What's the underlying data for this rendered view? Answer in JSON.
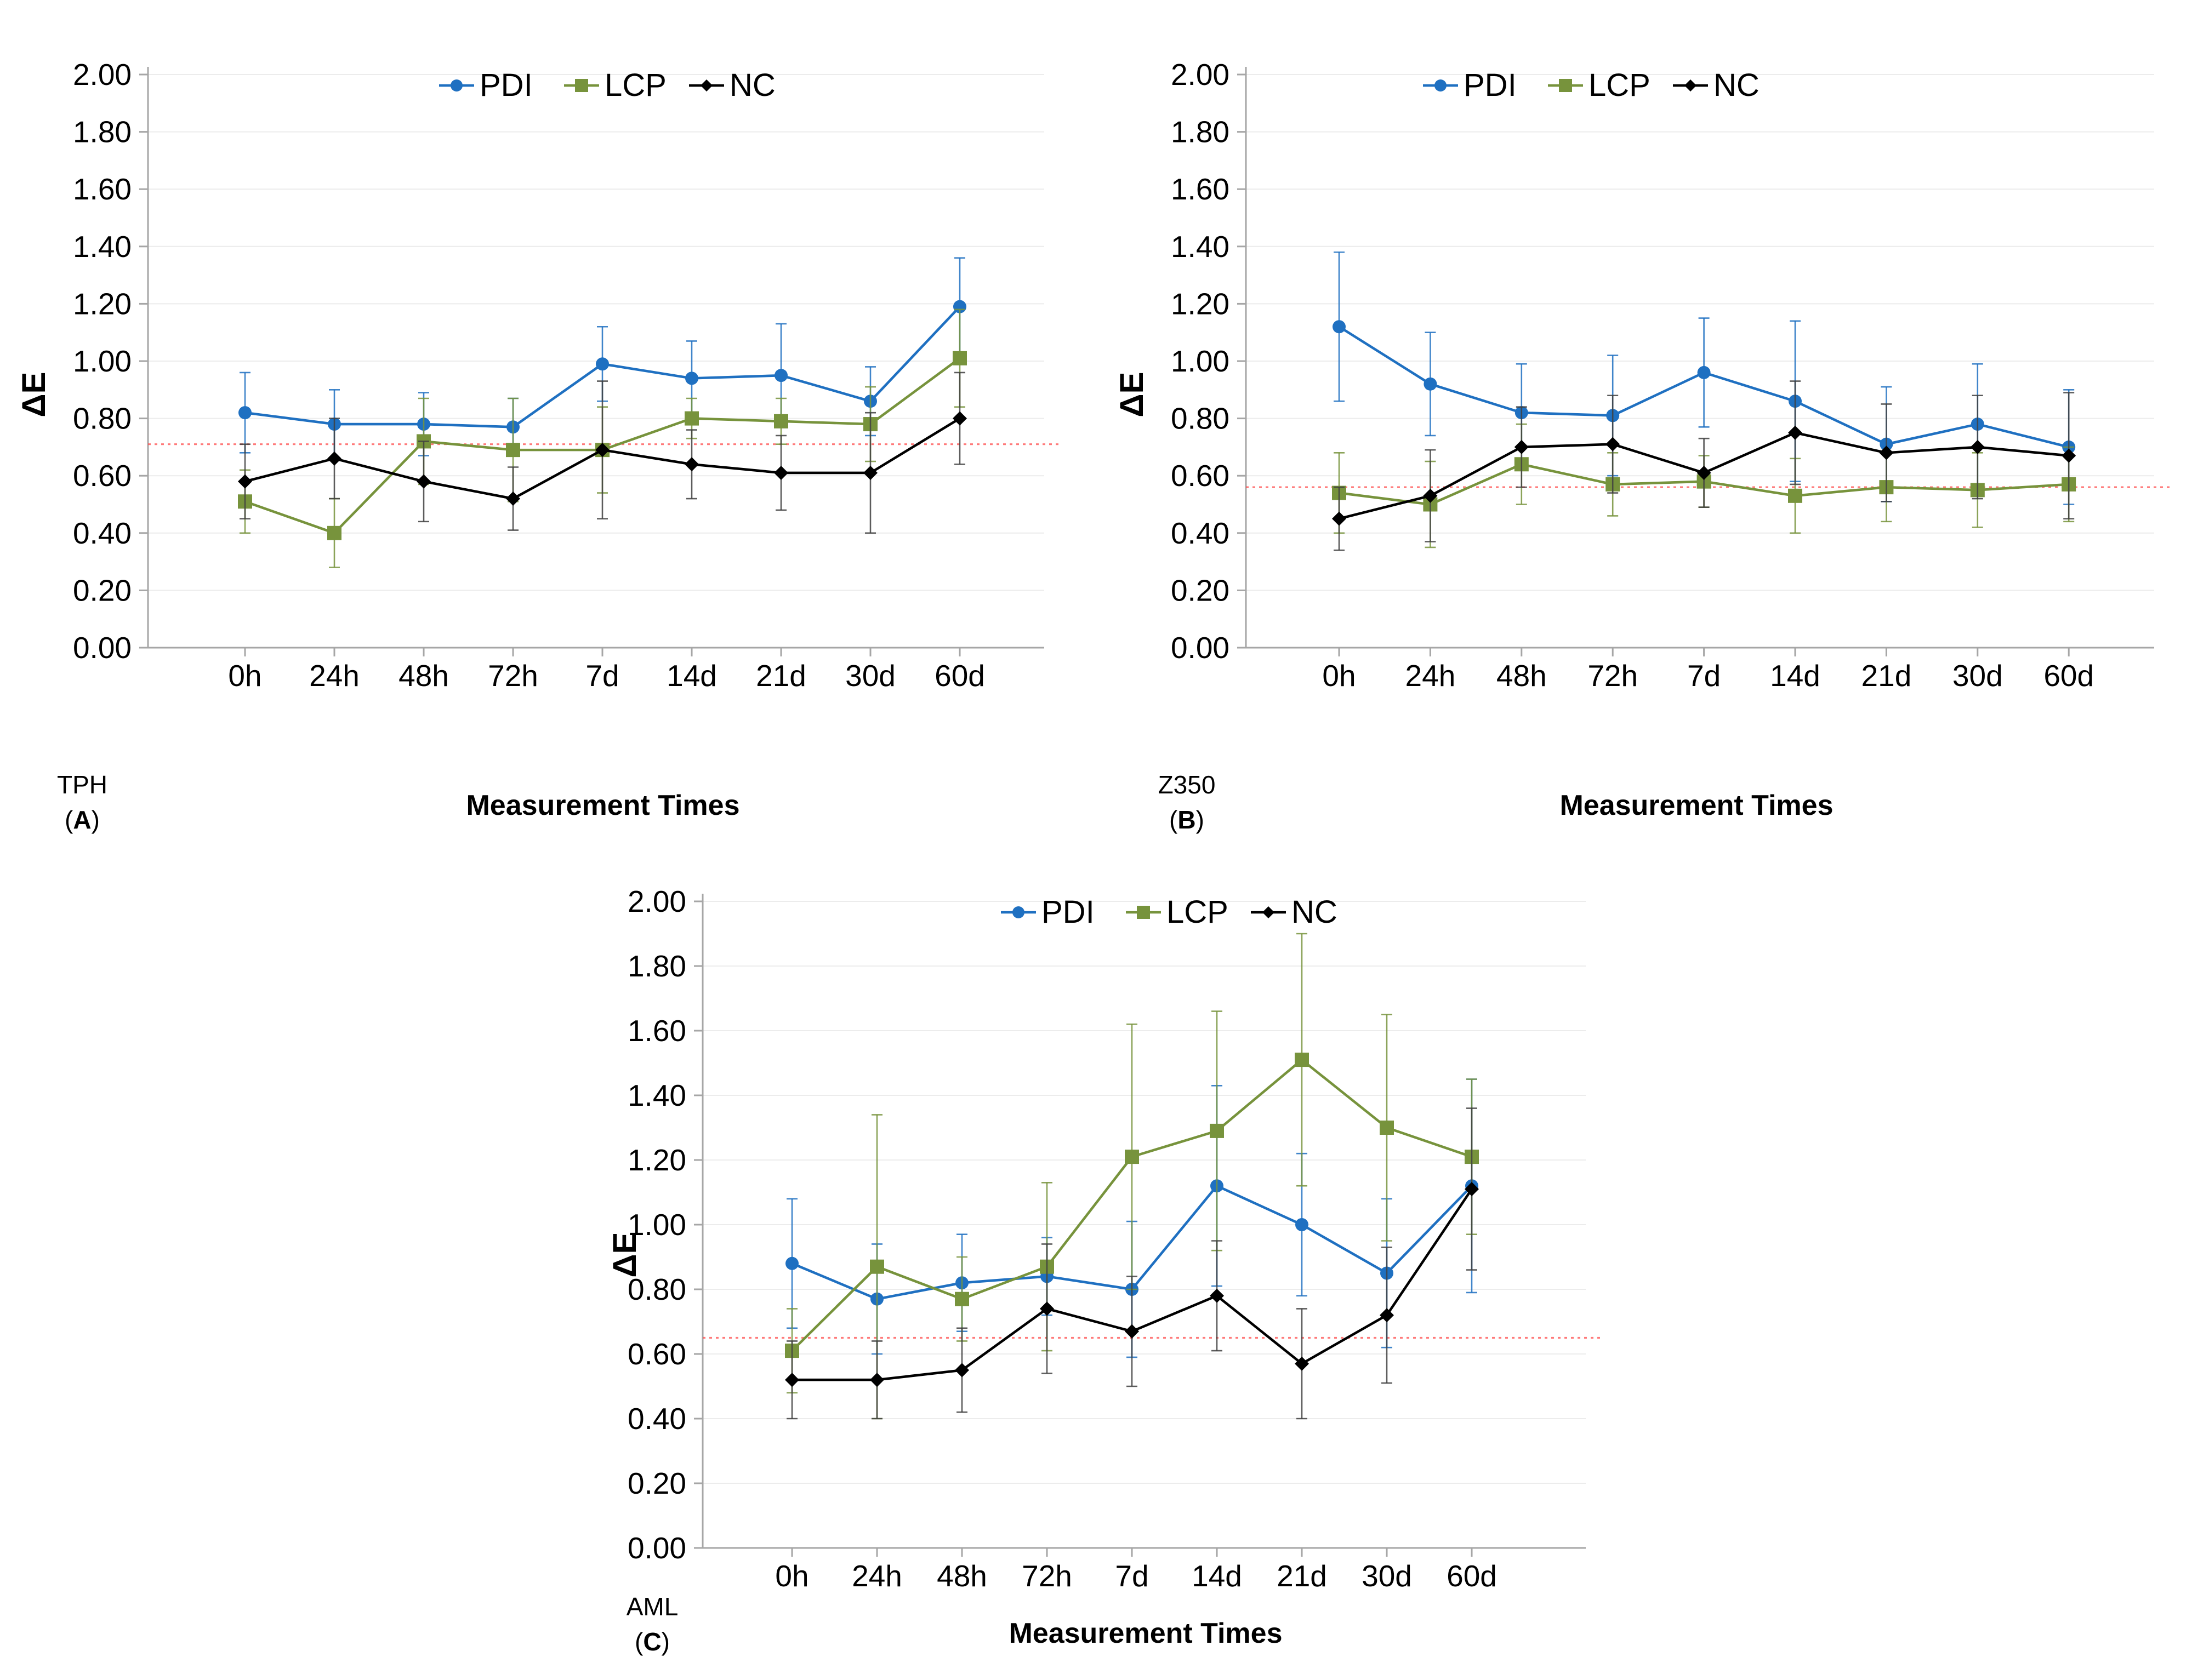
{
  "figure": {
    "background": "#FFFFFF",
    "axis_label_y": "ΔE",
    "axis_label_x": "Measurement Times",
    "categories": [
      "0h",
      "24h",
      "48h",
      "72h",
      "7d",
      "14d",
      "21d",
      "30d",
      "60d"
    ],
    "yticks": [
      "2.00",
      "1.80",
      "1.60",
      "1.40",
      "1.20",
      "1.00",
      "0.80",
      "0.60",
      "0.40",
      "0.20",
      "0.00"
    ],
    "legend": [
      {
        "label": "PDI",
        "marker": "circle",
        "color": "#1F70C1"
      },
      {
        "label": "LCP",
        "marker": "square",
        "color": "#77933C"
      },
      {
        "label": "NC",
        "marker": "diamond",
        "color": "#000000"
      }
    ],
    "colors": {
      "grid": "#ECECEC",
      "axis": "#A6A6A6",
      "reference_line": "#FF4D4D",
      "text": "#000000",
      "nc_errorbar": "#404040"
    }
  },
  "chart_data": [
    {
      "type": "line",
      "panel": "A",
      "material": "TPH",
      "panel_label_letter": "A",
      "title": "",
      "xlabel": "Measurement Times",
      "ylabel": "ΔE",
      "ylim": [
        0,
        2.0
      ],
      "ytick_step": 0.2,
      "grid": true,
      "legend_position": "top-center",
      "categories": [
        "0h",
        "24h",
        "48h",
        "72h",
        "7d",
        "14d",
        "21d",
        "30d",
        "60d"
      ],
      "reference_line": 0.71,
      "series": [
        {
          "name": "PDI",
          "values": [
            0.82,
            0.78,
            0.78,
            0.77,
            0.99,
            0.94,
            0.95,
            0.86,
            1.19
          ],
          "err": [
            0.14,
            0.12,
            0.11,
            0.1,
            0.13,
            0.13,
            0.18,
            0.12,
            0.17
          ]
        },
        {
          "name": "LCP",
          "values": [
            0.51,
            0.4,
            0.72,
            0.69,
            0.69,
            0.8,
            0.79,
            0.78,
            1.01
          ],
          "err": [
            0.11,
            0.12,
            0.15,
            0.18,
            0.15,
            0.07,
            0.08,
            0.13,
            0.17
          ]
        },
        {
          "name": "NC",
          "values": [
            0.58,
            0.66,
            0.58,
            0.52,
            0.69,
            0.64,
            0.61,
            0.61,
            0.8
          ],
          "err": [
            0.13,
            0.14,
            0.14,
            0.11,
            0.24,
            0.12,
            0.13,
            0.21,
            0.16
          ]
        }
      ]
    },
    {
      "type": "line",
      "panel": "B",
      "material": "Z350",
      "panel_label_letter": "B",
      "title": "",
      "xlabel": "Measurement Times",
      "ylabel": "ΔE",
      "ylim": [
        0,
        2.0
      ],
      "ytick_step": 0.2,
      "grid": true,
      "legend_position": "top-center",
      "categories": [
        "0h",
        "24h",
        "48h",
        "72h",
        "7d",
        "14d",
        "21d",
        "30d",
        "60d"
      ],
      "reference_line": 0.56,
      "series": [
        {
          "name": "PDI",
          "values": [
            1.12,
            0.92,
            0.82,
            0.81,
            0.96,
            0.86,
            0.71,
            0.78,
            0.7
          ],
          "err": [
            0.26,
            0.18,
            0.17,
            0.21,
            0.19,
            0.28,
            0.2,
            0.21,
            0.2
          ]
        },
        {
          "name": "LCP",
          "values": [
            0.54,
            0.5,
            0.64,
            0.57,
            0.58,
            0.53,
            0.56,
            0.55,
            0.57
          ],
          "err": [
            0.14,
            0.15,
            0.14,
            0.11,
            0.09,
            0.13,
            0.12,
            0.13,
            0.13
          ]
        },
        {
          "name": "NC",
          "values": [
            0.45,
            0.53,
            0.7,
            0.71,
            0.61,
            0.75,
            0.68,
            0.7,
            0.67
          ],
          "err": [
            0.11,
            0.16,
            0.14,
            0.17,
            0.12,
            0.18,
            0.17,
            0.18,
            0.22
          ]
        }
      ]
    },
    {
      "type": "line",
      "panel": "C",
      "material": "AML",
      "panel_label_letter": "C",
      "title": "",
      "xlabel": "Measurement Times",
      "ylabel": "ΔE",
      "ylim": [
        0,
        2.0
      ],
      "ytick_step": 0.2,
      "grid": true,
      "legend_position": "top-center",
      "categories": [
        "0h",
        "24h",
        "48h",
        "72h",
        "7d",
        "14d",
        "21d",
        "30d",
        "60d"
      ],
      "reference_line": 0.65,
      "series": [
        {
          "name": "PDI",
          "values": [
            0.88,
            0.77,
            0.82,
            0.84,
            0.8,
            1.12,
            1.0,
            0.85,
            1.12
          ],
          "err": [
            0.2,
            0.17,
            0.15,
            0.12,
            0.21,
            0.31,
            0.22,
            0.23,
            0.33
          ]
        },
        {
          "name": "LCP",
          "values": [
            0.61,
            0.87,
            0.77,
            0.87,
            1.21,
            1.29,
            1.51,
            1.3,
            1.21
          ],
          "err": [
            0.13,
            0.47,
            0.13,
            0.26,
            0.41,
            0.37,
            0.39,
            0.35,
            0.24
          ]
        },
        {
          "name": "NC",
          "values": [
            0.52,
            0.52,
            0.55,
            0.74,
            0.67,
            0.78,
            0.57,
            0.72,
            1.11
          ],
          "err": [
            0.12,
            0.12,
            0.13,
            0.2,
            0.17,
            0.17,
            0.17,
            0.21,
            0.25
          ]
        }
      ]
    }
  ]
}
